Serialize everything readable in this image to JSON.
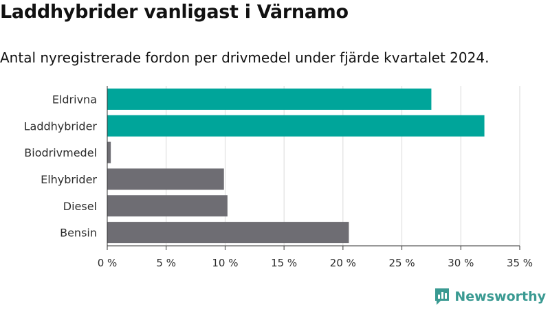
{
  "header": {
    "title": "Laddhybrider vanligast i Värnamo",
    "subtitle": "Antal nyregistrerade fordon per drivmedel under fjärde kvartalet 2024."
  },
  "brand": {
    "name": "Newsworthy",
    "icon": "newsworthy-logo-icon",
    "color": "#3a9a92"
  },
  "colors": {
    "highlight": "#00a59a",
    "default": "#6e6d73",
    "grid": "#d9d9d9",
    "axis": "#333333"
  },
  "chart_data": {
    "type": "bar",
    "orientation": "horizontal",
    "title": "Laddhybrider vanligast i Värnamo",
    "subtitle": "Antal nyregistrerade fordon per drivmedel under fjärde kvartalet 2024.",
    "xlabel": "",
    "ylabel": "",
    "categories": [
      "Eldrivna",
      "Laddhybrider",
      "Biodrivmedel",
      "Elhybrider",
      "Diesel",
      "Bensin"
    ],
    "values": [
      27.5,
      32.0,
      0.3,
      9.9,
      10.2,
      20.5
    ],
    "highlighted": [
      true,
      true,
      false,
      false,
      false,
      false
    ],
    "xlim": [
      0,
      35
    ],
    "xticks": [
      0,
      5,
      10,
      15,
      20,
      25,
      30,
      35
    ],
    "xtick_labels": [
      "0 %",
      "5 %",
      "10 %",
      "15 %",
      "20 %",
      "25 %",
      "30 %",
      "35 %"
    ],
    "grid": true
  }
}
